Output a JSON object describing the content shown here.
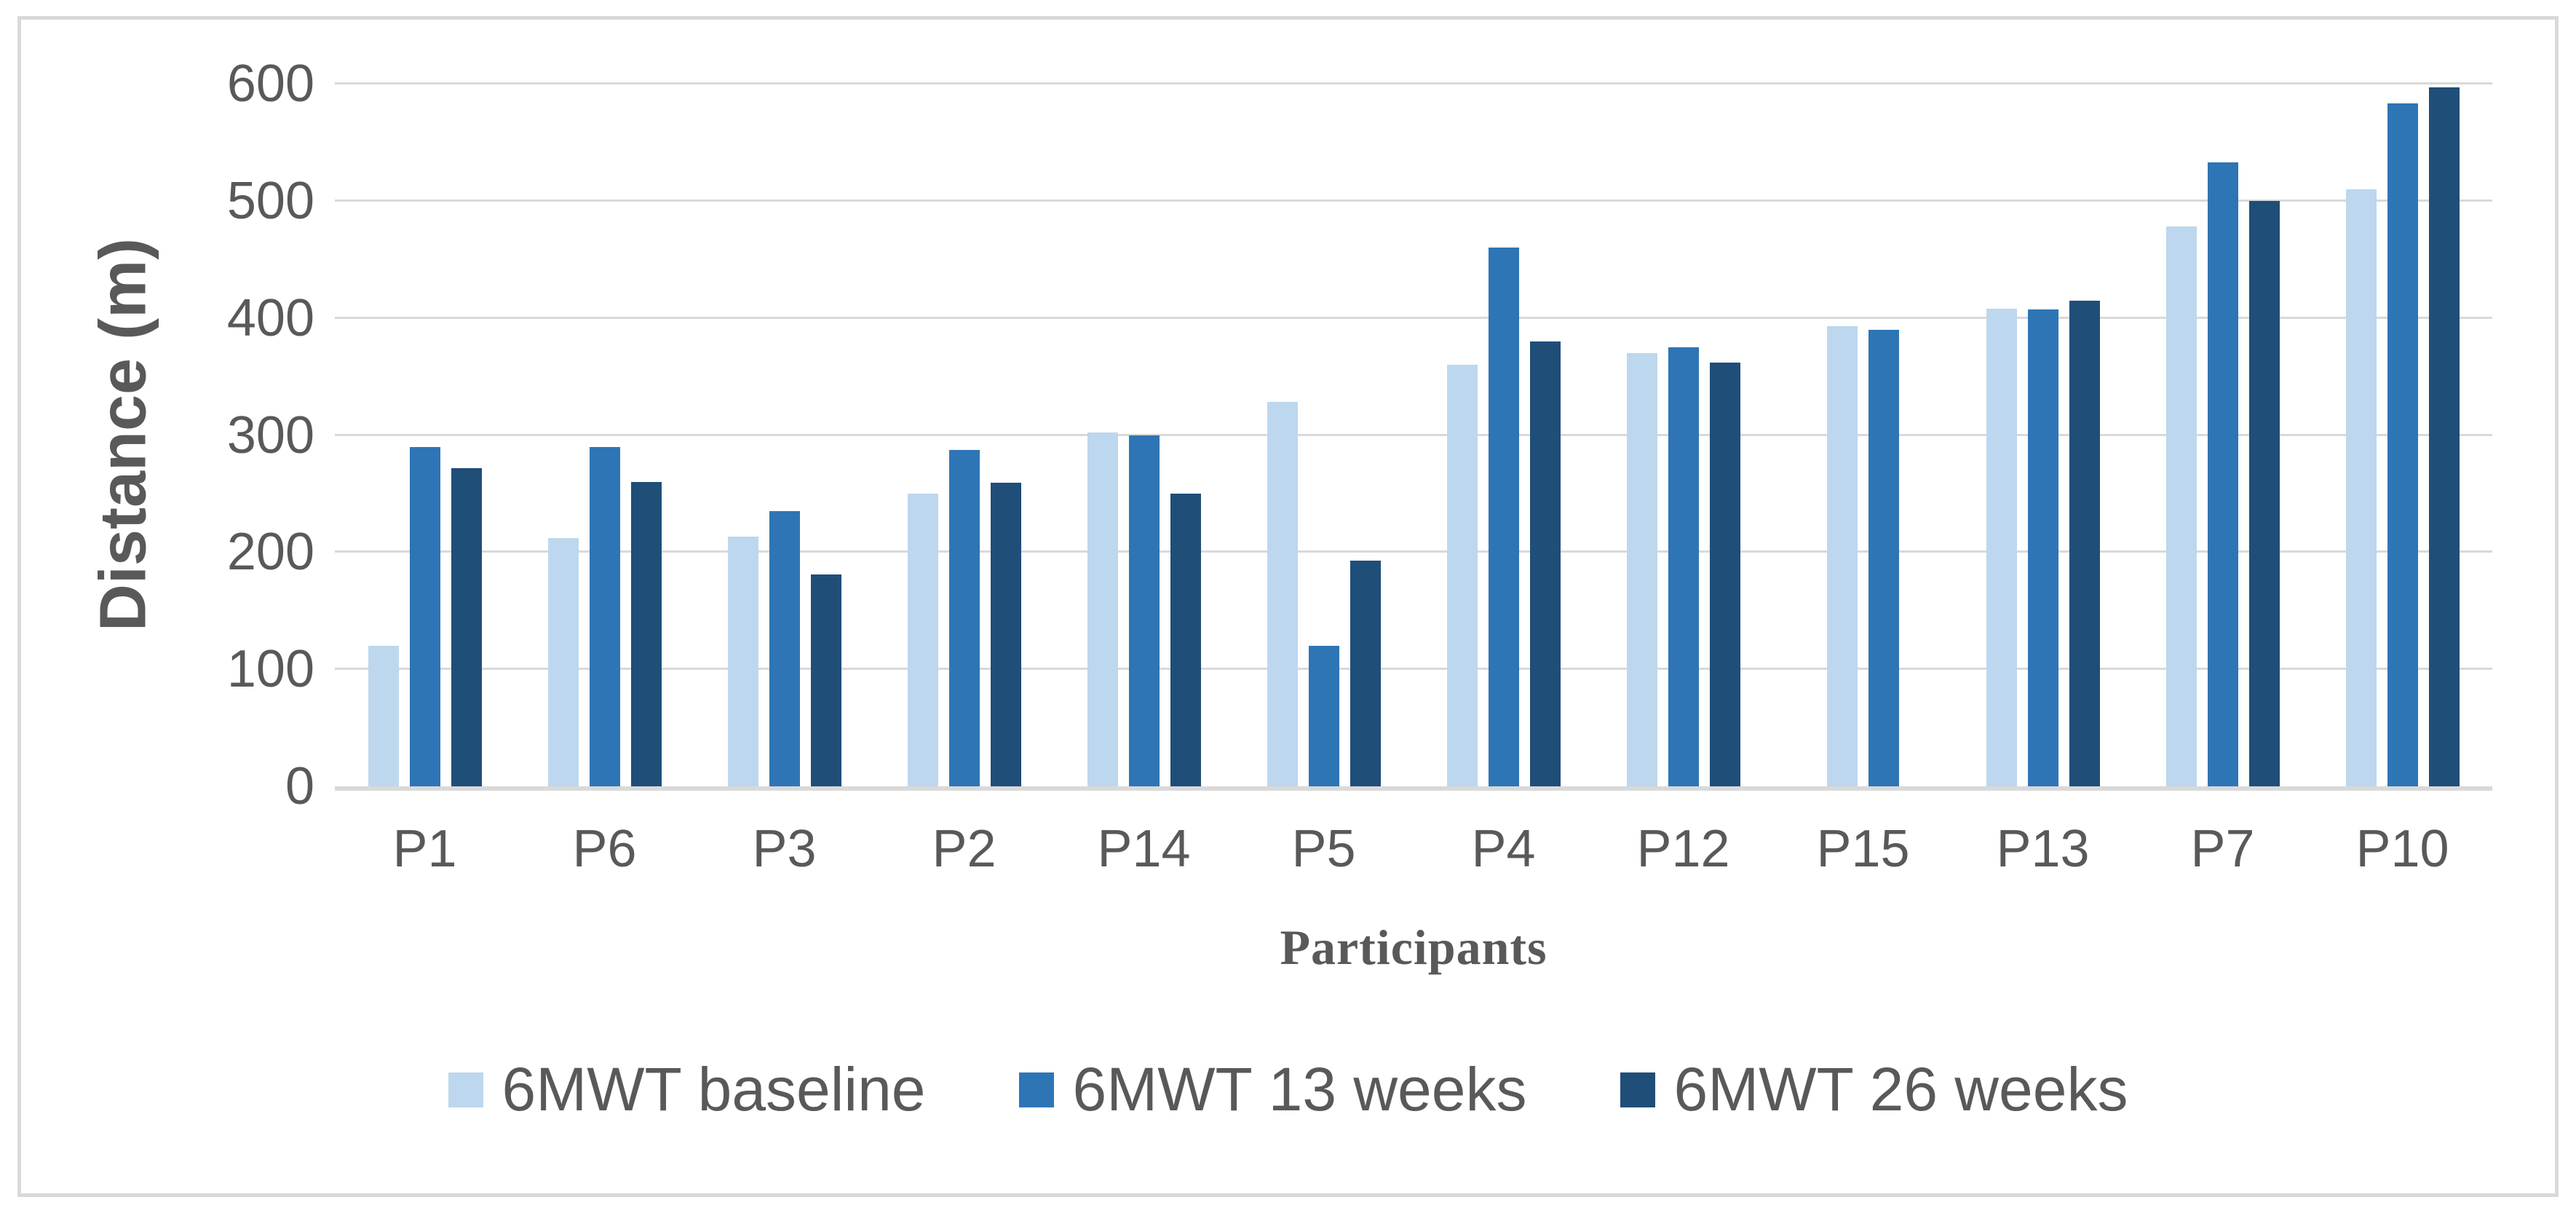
{
  "figure": {
    "background": "#FFFFFF",
    "border_color": "#D9D9D9",
    "grid_color": "#D9D9D9",
    "text_color": "#595959"
  },
  "chart_data": {
    "type": "bar",
    "title": "",
    "xlabel": "Participants",
    "ylabel": "Distance (m)",
    "ylim": [
      0,
      600
    ],
    "yticks": [
      0,
      100,
      200,
      300,
      400,
      500,
      600
    ],
    "grid": "horizontal",
    "legend_position": "bottom",
    "categories": [
      "P1",
      "P6",
      "P3",
      "P2",
      "P14",
      "P5",
      "P4",
      "P12",
      "P15",
      "P13",
      "P7",
      "P10"
    ],
    "series": [
      {
        "name": "6MWT baseline",
        "color": "#BDD7EE",
        "values": [
          120,
          212,
          213,
          250,
          302,
          328,
          360,
          370,
          393,
          408,
          478,
          510
        ]
      },
      {
        "name": "6MWT 13 weeks",
        "color": "#2E75B6",
        "values": [
          290,
          290,
          235,
          287,
          300,
          120,
          460,
          375,
          390,
          407,
          533,
          583
        ]
      },
      {
        "name": "6MWT 26 weeks",
        "color": "#1F4E79",
        "values": [
          272,
          260,
          181,
          259,
          250,
          193,
          380,
          362,
          null,
          415,
          500,
          597
        ]
      }
    ]
  }
}
